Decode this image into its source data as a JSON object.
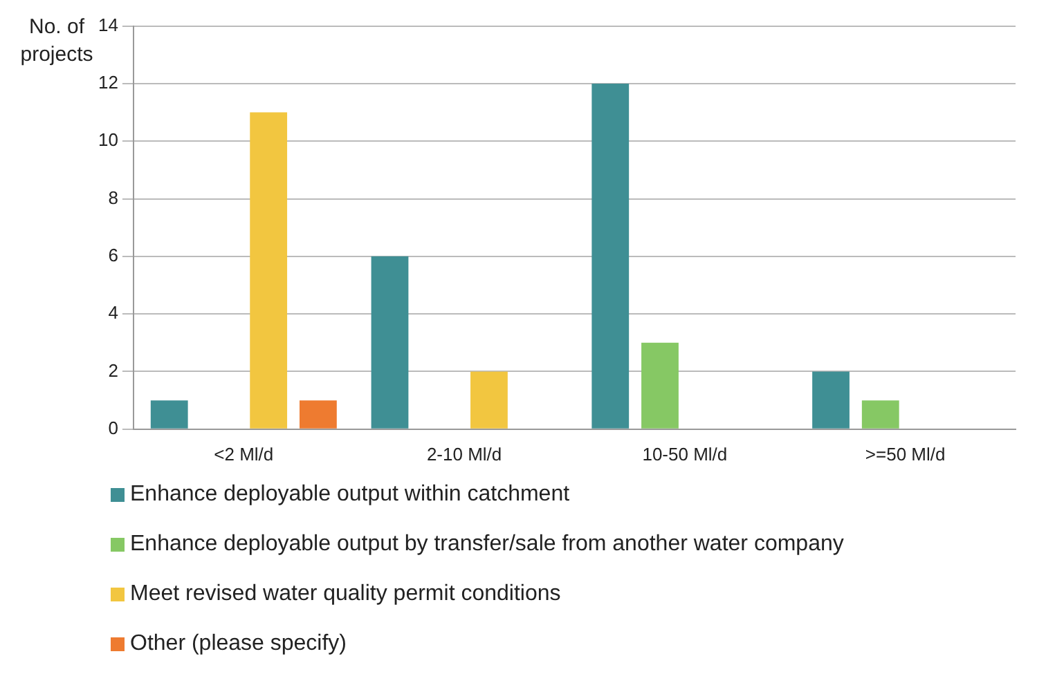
{
  "chart_data": {
    "type": "bar",
    "ylabel": "No. of projects",
    "categories": [
      "<2 Ml/d",
      "2-10 Ml/d",
      "10-50 Ml/d",
      ">=50 Ml/d"
    ],
    "series": [
      {
        "name": "Enhance deployable output within catchment",
        "color": "#3f8f94",
        "values": [
          1,
          6,
          12,
          2
        ]
      },
      {
        "name": "Enhance deployable output by transfer/sale from another water company",
        "color": "#86c864",
        "values": [
          0,
          0,
          3,
          1
        ]
      },
      {
        "name": "Meet revised water quality permit conditions",
        "color": "#f2c640",
        "values": [
          11,
          2,
          0,
          0
        ]
      },
      {
        "name": "Other (please specify)",
        "color": "#ee7b30",
        "values": [
          1,
          0,
          0,
          0
        ]
      }
    ],
    "ylim": [
      0,
      14
    ],
    "yticks": [
      0,
      2,
      4,
      6,
      8,
      10,
      12,
      14
    ],
    "grid": "y",
    "legend": "bottom"
  }
}
